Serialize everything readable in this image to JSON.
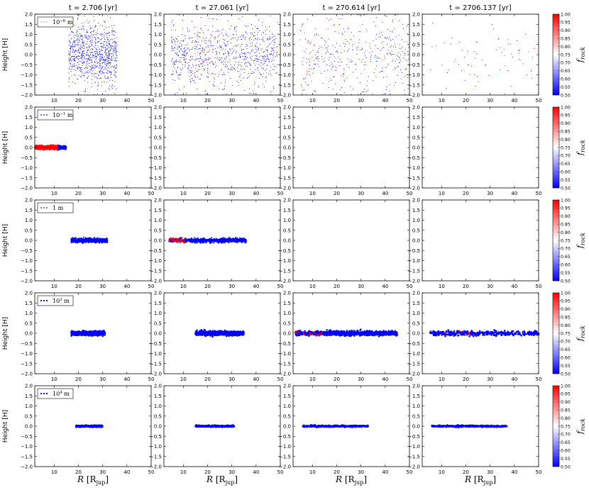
{
  "chart_data": {
    "type": "scatter",
    "layout": "grid 5 rows x 4 columns of scatter panels with a colorbar per row",
    "column_titles": [
      "t = 2.706 [yr]",
      "t = 27.061 [yr]",
      "t = 270.614 [yr]",
      "t = 2706.137 [yr]"
    ],
    "xlabel": "R [R_jup]",
    "xlabel_main": "R",
    "xlabel_unit": "[R",
    "xlabel_sub": "jup",
    "xlabel_close": "]",
    "ylabel": "Height [H]",
    "xlim": [
      2,
      50
    ],
    "ylim": [
      -2.0,
      2.0
    ],
    "x_ticks": [
      "10",
      "20",
      "30",
      "40",
      "50"
    ],
    "x_tick_values": [
      10,
      20,
      30,
      40,
      50
    ],
    "y_ticks": [
      "2.0",
      "1.5",
      "1.0",
      "0.5",
      "0.0",
      "−0.5",
      "−1.0",
      "−1.5",
      "−2.0"
    ],
    "y_tick_values": [
      2.0,
      1.5,
      1.0,
      0.5,
      0.0,
      -0.5,
      -1.0,
      -1.5,
      -2.0
    ],
    "colorbar": {
      "label_main": "f",
      "label_sub": "rock",
      "range": [
        0.5,
        1.0
      ],
      "ticks": [
        "1.00",
        "0.95",
        "0.90",
        "0.85",
        "0.80",
        "0.75",
        "0.70",
        "0.65",
        "0.60",
        "0.55",
        "0.50"
      ],
      "tick_values": [
        1.0,
        0.95,
        0.9,
        0.85,
        0.8,
        0.75,
        0.7,
        0.65,
        0.6,
        0.55,
        0.5
      ],
      "colormap": [
        "#0000ff",
        "#ffffff",
        "#ff0000"
      ]
    },
    "colors": {
      "rock_rich": "#ff0000",
      "ice_rich": "#0000ff",
      "neutral": "#ffffff"
    },
    "rows": [
      {
        "legend": "10⁻⁶ m",
        "size_base": "10",
        "size_exp": "−6",
        "size_unit": "m",
        "marker": "tiny",
        "panels": [
          {
            "x_range": [
              16,
              36
            ],
            "y_std": 0.75,
            "count": 900,
            "rock_fraction": 0.02,
            "red_x_range": null
          },
          {
            "x_range": [
              5,
              49
            ],
            "y_std": 0.8,
            "count": 900,
            "rock_fraction": 0.05,
            "red_x_range": [
              15,
              25
            ]
          },
          {
            "x_range": [
              5,
              50
            ],
            "y_std": 1.0,
            "count": 420,
            "rock_fraction": 0.15,
            "red_x_range": [
              5,
              45
            ]
          },
          {
            "x_range": [
              5,
              50
            ],
            "y_std": 0.9,
            "count": 75,
            "rock_fraction": 0.35,
            "red_x_range": [
              25,
              50
            ]
          }
        ]
      },
      {
        "legend": "10⁻¹ m",
        "size_base": "10",
        "size_exp": "−1",
        "size_unit": "m",
        "marker": "small",
        "panels": [
          {
            "x_range": [
              2,
              15
            ],
            "y_std": 0.05,
            "count": 700,
            "rock_fraction": 0.75,
            "red_x_range": [
              2,
              11.5
            ]
          },
          {
            "x_range": null,
            "y_std": 0,
            "count": 0,
            "rock_fraction": 0,
            "red_x_range": null
          },
          {
            "x_range": null,
            "y_std": 0,
            "count": 0,
            "rock_fraction": 0,
            "red_x_range": null
          },
          {
            "x_range": null,
            "y_std": 0,
            "count": 0,
            "rock_fraction": 0,
            "red_x_range": null
          }
        ]
      },
      {
        "legend": "1 m",
        "size_base": "1",
        "size_exp": "",
        "size_unit": "m",
        "marker": "small",
        "panels": [
          {
            "x_range": [
              17,
              32
            ],
            "y_std": 0.05,
            "count": 700,
            "rock_fraction": 0.0,
            "red_x_range": null
          },
          {
            "x_range": [
              4,
              36
            ],
            "y_std": 0.05,
            "count": 1100,
            "rock_fraction": 0.14,
            "red_x_range": [
              4,
              11
            ]
          },
          {
            "x_range": null,
            "y_std": 0,
            "count": 0,
            "rock_fraction": 0,
            "red_x_range": null
          },
          {
            "x_range": null,
            "y_std": 0,
            "count": 0,
            "rock_fraction": 0,
            "red_x_range": null
          }
        ]
      },
      {
        "legend": "10³ m",
        "size_base": "10",
        "size_exp": "3",
        "size_unit": "m",
        "marker": "medium",
        "panels": [
          {
            "x_range": [
              17,
              31
            ],
            "y_std": 0.05,
            "count": 700,
            "rock_fraction": 0.0,
            "red_x_range": null
          },
          {
            "x_range": [
              15,
              35
            ],
            "y_std": 0.05,
            "count": 900,
            "rock_fraction": 0.0,
            "red_x_range": null
          },
          {
            "x_range": [
              3,
              45
            ],
            "y_std": 0.05,
            "count": 1300,
            "rock_fraction": 0.05,
            "red_x_range": [
              3,
              14
            ]
          },
          {
            "x_range": [
              5,
              50
            ],
            "y_std": 0.06,
            "count": 420,
            "rock_fraction": 0.06,
            "red_x_range": [
              5,
              25
            ]
          }
        ]
      },
      {
        "legend": "10⁴ m",
        "size_base": "10",
        "size_exp": "4",
        "size_unit": "m",
        "marker": "medium",
        "panels": [
          {
            "x_range": [
              19,
              30
            ],
            "y_std": 0.02,
            "count": 400,
            "rock_fraction": 0.0,
            "red_x_range": null
          },
          {
            "x_range": [
              15,
              31
            ],
            "y_std": 0.02,
            "count": 420,
            "rock_fraction": 0.0,
            "red_x_range": null
          },
          {
            "x_range": [
              6,
              33
            ],
            "y_std": 0.02,
            "count": 440,
            "rock_fraction": 0.0,
            "red_x_range": null
          },
          {
            "x_range": [
              6,
              37
            ],
            "y_std": 0.02,
            "count": 440,
            "rock_fraction": 0.0,
            "red_x_range": null
          }
        ]
      }
    ]
  }
}
